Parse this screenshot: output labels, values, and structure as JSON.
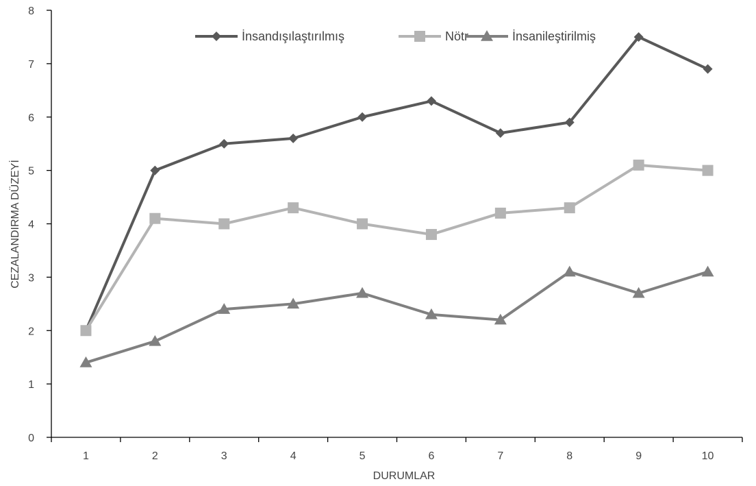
{
  "chart_data": {
    "type": "line",
    "categories": [
      "1",
      "2",
      "3",
      "4",
      "5",
      "6",
      "7",
      "8",
      "9",
      "10"
    ],
    "ylim": [
      0,
      8
    ],
    "yticks": [
      "0",
      "1",
      "2",
      "3",
      "4",
      "5",
      "6",
      "7",
      "8"
    ],
    "xlabel": "DURUMLAR",
    "ylabel": "CEZALANDIRMA DÜZEYİ",
    "grid": false,
    "legend_position": "top-center",
    "series": [
      {
        "name": "İnsandışılaştırılmış",
        "marker": "diamond",
        "color": "#595959",
        "values": [
          2.0,
          5.0,
          5.5,
          5.6,
          6.0,
          6.3,
          5.7,
          5.9,
          7.5,
          6.9
        ]
      },
      {
        "name": "Nötr",
        "marker": "square",
        "color": "#b4b4b4",
        "values": [
          2.0,
          4.1,
          4.0,
          4.3,
          4.0,
          3.8,
          4.2,
          4.3,
          5.1,
          5.0
        ]
      },
      {
        "name": "İnsanileştirilmiş",
        "marker": "triangle",
        "color": "#808080",
        "values": [
          1.4,
          1.8,
          2.4,
          2.5,
          2.7,
          2.3,
          2.2,
          3.1,
          2.7,
          3.1
        ]
      }
    ]
  }
}
